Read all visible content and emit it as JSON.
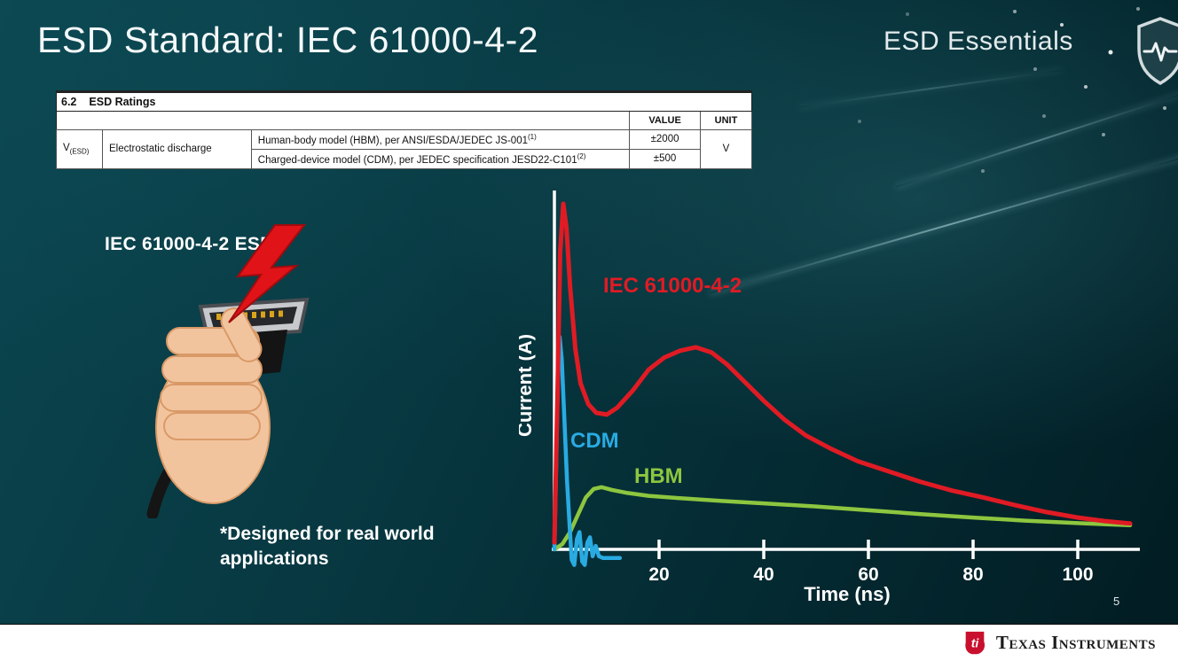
{
  "slide": {
    "title": "ESD Standard: IEC 61000-4-2",
    "series_label": "ESD Essentials",
    "page_number": "5"
  },
  "icons": {
    "brand_shield": "shield-pulse",
    "esd_bolt": "lightning-bolt",
    "ti_logo": "ti-bug"
  },
  "ratings_table": {
    "section_number": "6.2",
    "section_title": "ESD Ratings",
    "col_value": "VALUE",
    "col_unit": "UNIT",
    "param_symbol": "V",
    "param_symbol_sub": "(ESD)",
    "param_name": "Electrostatic discharge",
    "rows": [
      {
        "desc": "Human-body model (HBM), per ANSI/ESDA/JEDEC JS-001",
        "sup": "(1)",
        "value": "±2000"
      },
      {
        "desc": "Charged-device model (CDM), per JEDEC specification JESD22-C101",
        "sup": "(2)",
        "value": "±500"
      }
    ],
    "unit": "V"
  },
  "left": {
    "caption": "IEC 61000-4-2 ESD",
    "note_line1": "*Designed for real world",
    "note_line2": "applications"
  },
  "chart_data": {
    "type": "line",
    "title": "",
    "xlabel": "Time (ns)",
    "ylabel": "Current (A)",
    "xlim": [
      0,
      110
    ],
    "x_ticks": [
      20,
      40,
      60,
      80,
      100
    ],
    "grid": false,
    "legend": "inline-labels",
    "series": [
      {
        "id": "iec",
        "name": "IEC 61000-4-2",
        "color": "#e01b24",
        "width": 5,
        "label_xy": [
          95,
          125
        ],
        "points": [
          [
            0,
            0.02
          ],
          [
            0.6,
            0.45
          ],
          [
            1.1,
            0.86
          ],
          [
            1.7,
            1.0
          ],
          [
            2.3,
            0.93
          ],
          [
            3,
            0.76
          ],
          [
            4,
            0.58
          ],
          [
            5,
            0.48
          ],
          [
            6.5,
            0.42
          ],
          [
            8,
            0.395
          ],
          [
            10,
            0.39
          ],
          [
            12,
            0.41
          ],
          [
            15,
            0.46
          ],
          [
            18,
            0.52
          ],
          [
            21,
            0.555
          ],
          [
            24,
            0.575
          ],
          [
            27,
            0.585
          ],
          [
            30,
            0.57
          ],
          [
            33,
            0.535
          ],
          [
            36,
            0.49
          ],
          [
            40,
            0.43
          ],
          [
            44,
            0.375
          ],
          [
            48,
            0.33
          ],
          [
            53,
            0.29
          ],
          [
            58,
            0.255
          ],
          [
            64,
            0.225
          ],
          [
            70,
            0.195
          ],
          [
            76,
            0.17
          ],
          [
            82,
            0.15
          ],
          [
            88,
            0.128
          ],
          [
            94,
            0.108
          ],
          [
            100,
            0.092
          ],
          [
            105,
            0.082
          ],
          [
            110,
            0.075
          ]
        ]
      },
      {
        "id": "cdm",
        "name": "CDM",
        "color": "#29abe2",
        "width": 4.5,
        "label_xy": [
          58,
          300
        ],
        "points": [
          [
            0,
            0
          ],
          [
            0.3,
            0.22
          ],
          [
            0.7,
            0.52
          ],
          [
            1.0,
            0.615
          ],
          [
            1.4,
            0.55
          ],
          [
            1.9,
            0.38
          ],
          [
            2.4,
            0.2
          ],
          [
            2.9,
            0.07
          ],
          [
            3.3,
            -0.03
          ],
          [
            3.8,
            -0.045
          ],
          [
            4.3,
            0.03
          ],
          [
            4.8,
            0.05
          ],
          [
            5.3,
            -0.035
          ],
          [
            5.8,
            -0.045
          ],
          [
            6.3,
            0.02
          ],
          [
            6.8,
            0.035
          ],
          [
            7.3,
            -0.02
          ],
          [
            7.9,
            0.01
          ],
          [
            8.5,
            -0.02
          ],
          [
            9.3,
            -0.025
          ],
          [
            10.5,
            -0.025
          ],
          [
            12.5,
            -0.025
          ]
        ]
      },
      {
        "id": "hbm",
        "name": "HBM",
        "color": "#8dc63f",
        "width": 4.5,
        "label_xy": [
          130,
          340
        ],
        "points": [
          [
            0,
            0
          ],
          [
            1.5,
            0.015
          ],
          [
            3,
            0.05
          ],
          [
            4.5,
            0.1
          ],
          [
            6,
            0.15
          ],
          [
            7.5,
            0.175
          ],
          [
            9,
            0.18
          ],
          [
            11,
            0.172
          ],
          [
            14,
            0.163
          ],
          [
            18,
            0.155
          ],
          [
            24,
            0.148
          ],
          [
            32,
            0.14
          ],
          [
            40,
            0.133
          ],
          [
            50,
            0.124
          ],
          [
            60,
            0.113
          ],
          [
            70,
            0.102
          ],
          [
            80,
            0.092
          ],
          [
            90,
            0.083
          ],
          [
            100,
            0.076
          ],
          [
            106,
            0.072
          ],
          [
            110,
            0.07
          ]
        ]
      }
    ]
  },
  "footer": {
    "brand": "Texas Instruments"
  }
}
